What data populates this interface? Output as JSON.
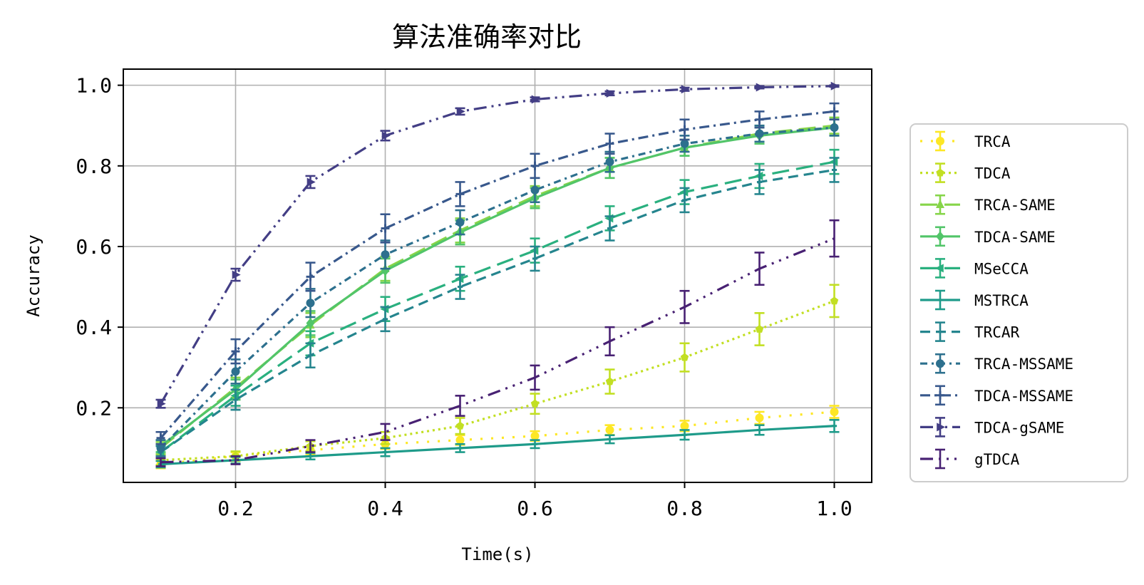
{
  "chart_data": {
    "type": "line",
    "title": "算法准确率对比",
    "xlabel": "Time(s)",
    "ylabel": "Accuracy",
    "xlim": [
      0.05,
      1.05
    ],
    "ylim": [
      0.015,
      1.04
    ],
    "xticks": [
      0.2,
      0.4,
      0.6,
      0.8,
      1.0
    ],
    "xtick_labels": [
      "0.2",
      "0.4",
      "0.6",
      "0.8",
      "1.0"
    ],
    "yticks": [
      0.2,
      0.4,
      0.6,
      0.8,
      1.0
    ],
    "ytick_labels": [
      "0.2",
      "0.4",
      "0.6",
      "0.8",
      "1.0"
    ],
    "grid": true,
    "legend_position": "right",
    "x": [
      0.1,
      0.2,
      0.3,
      0.4,
      0.5,
      0.6,
      0.7,
      0.8,
      0.9,
      1.0
    ],
    "series": [
      {
        "name": "TRCA",
        "color": "#fde725",
        "dash": "3,12",
        "marker": "circle",
        "values": [
          0.06,
          0.08,
          0.095,
          0.11,
          0.12,
          0.13,
          0.145,
          0.155,
          0.175,
          0.19
        ],
        "errors": [
          0.01,
          0.01,
          0.01,
          0.012,
          0.012,
          0.012,
          0.012,
          0.013,
          0.015,
          0.015
        ]
      },
      {
        "name": "TDCA",
        "color": "#c2df23",
        "dash": "3,5",
        "marker": "pentagon",
        "values": [
          0.07,
          0.08,
          0.105,
          0.125,
          0.155,
          0.21,
          0.265,
          0.325,
          0.395,
          0.465
        ],
        "errors": [
          0.012,
          0.012,
          0.012,
          0.015,
          0.02,
          0.025,
          0.03,
          0.035,
          0.04,
          0.04
        ]
      },
      {
        "name": "TRCA-SAME",
        "color": "#86d549",
        "dash": "24,10",
        "marker": "triangle",
        "values": [
          0.1,
          0.25,
          0.405,
          0.545,
          0.64,
          0.725,
          0.795,
          0.845,
          0.88,
          0.9
        ],
        "errors": [
          0.015,
          0.025,
          0.03,
          0.03,
          0.03,
          0.025,
          0.025,
          0.02,
          0.02,
          0.02
        ]
      },
      {
        "name": "TDCA-SAME",
        "color": "#52c569",
        "dash": "none",
        "marker": "diamond",
        "values": [
          0.105,
          0.245,
          0.41,
          0.54,
          0.635,
          0.72,
          0.795,
          0.845,
          0.875,
          0.895
        ],
        "errors": [
          0.015,
          0.025,
          0.03,
          0.03,
          0.03,
          0.025,
          0.025,
          0.02,
          0.02,
          0.02
        ]
      },
      {
        "name": "MSeCCA",
        "color": "#2ab07f",
        "dash": "24,10",
        "marker": "triangle-left",
        "values": [
          0.09,
          0.23,
          0.36,
          0.445,
          0.52,
          0.59,
          0.67,
          0.735,
          0.775,
          0.81
        ],
        "errors": [
          0.015,
          0.025,
          0.03,
          0.03,
          0.03,
          0.03,
          0.03,
          0.03,
          0.03,
          0.03
        ]
      },
      {
        "name": "MSTRCA",
        "color": "#1e9b8a",
        "dash": "none",
        "marker": "tick",
        "values": [
          0.06,
          0.07,
          0.08,
          0.09,
          0.1,
          0.11,
          0.122,
          0.133,
          0.145,
          0.155
        ],
        "errors": [
          0.008,
          0.008,
          0.008,
          0.01,
          0.01,
          0.01,
          0.01,
          0.012,
          0.012,
          0.015
        ]
      },
      {
        "name": "TRCAR",
        "color": "#25858e",
        "dash": "14,8",
        "marker": "tick",
        "values": [
          0.09,
          0.22,
          0.33,
          0.42,
          0.5,
          0.57,
          0.645,
          0.715,
          0.76,
          0.79
        ],
        "errors": [
          0.015,
          0.025,
          0.03,
          0.03,
          0.03,
          0.03,
          0.03,
          0.03,
          0.03,
          0.03
        ]
      },
      {
        "name": "TRCA-MSSAME",
        "color": "#2d708e",
        "dash": "10,6,3,6",
        "marker": "circle",
        "values": [
          0.1,
          0.29,
          0.46,
          0.58,
          0.66,
          0.74,
          0.81,
          0.855,
          0.88,
          0.895
        ],
        "errors": [
          0.02,
          0.03,
          0.035,
          0.035,
          0.03,
          0.03,
          0.025,
          0.02,
          0.02,
          0.02
        ]
      },
      {
        "name": "TDCA-MSSAME",
        "color": "#38588c",
        "dash": "14,6,3,6",
        "marker": "plus",
        "values": [
          0.125,
          0.34,
          0.525,
          0.645,
          0.73,
          0.8,
          0.855,
          0.89,
          0.915,
          0.935
        ],
        "errors": [
          0.015,
          0.03,
          0.035,
          0.035,
          0.03,
          0.03,
          0.025,
          0.025,
          0.02,
          0.02
        ]
      },
      {
        "name": "TDCA-gSAME",
        "color": "#433e85",
        "dash": "18,7,3,7,3,7",
        "marker": "triangle-right",
        "values": [
          0.21,
          0.53,
          0.76,
          0.875,
          0.935,
          0.965,
          0.98,
          0.99,
          0.995,
          0.998
        ],
        "errors": [
          0.01,
          0.015,
          0.015,
          0.012,
          0.008,
          0.005,
          0.005,
          0.004,
          0.003,
          0.002
        ]
      },
      {
        "name": "gTDCA",
        "color": "#482173",
        "dash": "18,8,3,8,3,8,3,8",
        "marker": "none",
        "values": [
          0.065,
          0.07,
          0.105,
          0.14,
          0.205,
          0.275,
          0.365,
          0.45,
          0.545,
          0.62
        ],
        "errors": [
          0.01,
          0.01,
          0.015,
          0.02,
          0.025,
          0.03,
          0.035,
          0.04,
          0.04,
          0.045
        ]
      }
    ]
  }
}
